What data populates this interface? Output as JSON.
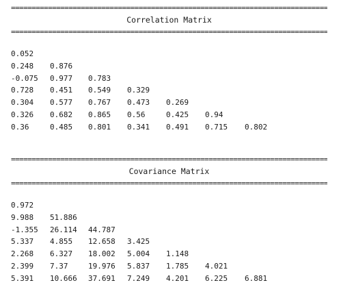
{
  "rule": "===================================================================================================",
  "sections": [
    {
      "title": "Correlation Matrix",
      "rows": [
        [
          "0.052"
        ],
        [
          "0.248",
          "0.876"
        ],
        [
          "-0.075",
          "0.977",
          "0.783"
        ],
        [
          "0.728",
          "0.451",
          "0.549",
          "0.329"
        ],
        [
          "0.304",
          "0.577",
          "0.767",
          "0.473",
          "0.269"
        ],
        [
          "0.326",
          "0.682",
          "0.865",
          "0.56",
          "0.425",
          "0.94"
        ],
        [
          "0.36",
          "0.485",
          "0.801",
          "0.341",
          "0.491",
          "0.715",
          "0.802"
        ]
      ]
    },
    {
      "title": "Covariance Matrix",
      "rows": [
        [
          "0.972"
        ],
        [
          "9.988",
          "51.886"
        ],
        [
          "-1.355",
          "26.114",
          "44.787"
        ],
        [
          "5.337",
          "4.855",
          "12.658",
          "3.425"
        ],
        [
          "2.268",
          "6.327",
          "18.002",
          "5.004",
          "1.148"
        ],
        [
          "2.399",
          "7.37",
          "19.976",
          "5.837",
          "1.785",
          "4.021"
        ],
        [
          "5.391",
          "10.666",
          "37.691",
          "7.249",
          "4.201",
          "6.225",
          "6.881"
        ]
      ]
    }
  ]
}
